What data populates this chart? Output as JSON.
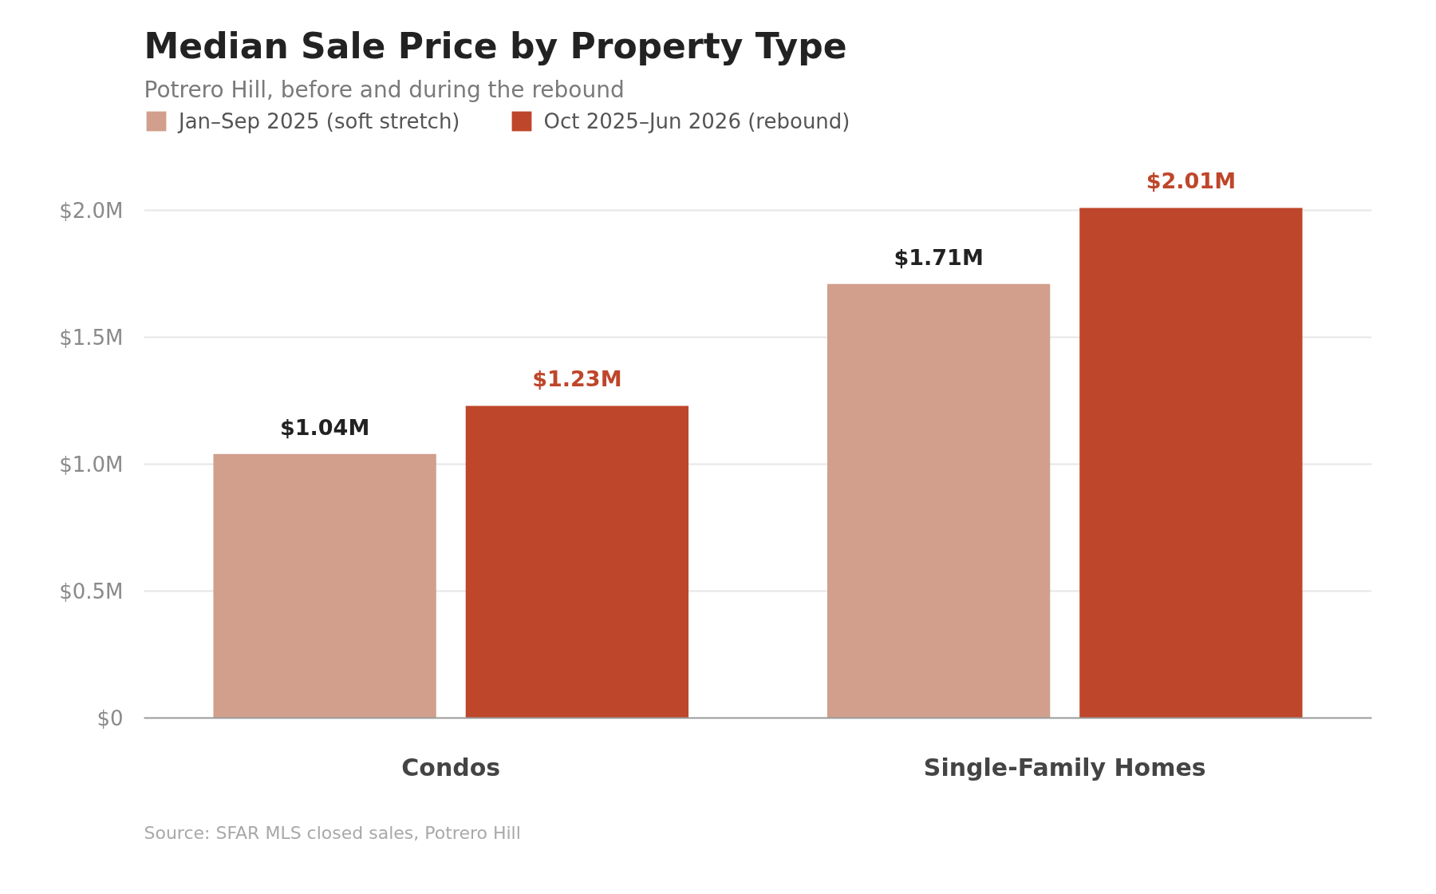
{
  "chart_data": {
    "type": "bar",
    "title": "Median Sale Price by Property Type",
    "subtitle": "Potrero Hill, before and during the rebound",
    "categories": [
      "Condos",
      "Single-Family Homes"
    ],
    "series": [
      {
        "name": "Jan–Sep 2025 (soft stretch)",
        "color": "#d19f8c",
        "values": [
          1.04,
          1.71
        ],
        "value_labels": [
          "$1.04M",
          "$1.71M"
        ]
      },
      {
        "name": "Oct 2025–Jun 2026 (rebound)",
        "color": "#be462a",
        "values": [
          1.23,
          2.01
        ],
        "value_labels": [
          "$1.23M",
          "$2.01M"
        ]
      }
    ],
    "ylim": [
      0,
      2.4
    ],
    "yticks": [
      {
        "value": 0,
        "label": "$0"
      },
      {
        "value": 0.5,
        "label": "$0.5M"
      },
      {
        "value": 1.0,
        "label": "$1.0M"
      },
      {
        "value": 1.5,
        "label": "$1.5M"
      },
      {
        "value": 2.0,
        "label": "$2.0M"
      }
    ],
    "grid": "y",
    "legend": "top left",
    "annotations": [
      "Source: SFAR MLS closed sales, Potrero Hill"
    ]
  }
}
